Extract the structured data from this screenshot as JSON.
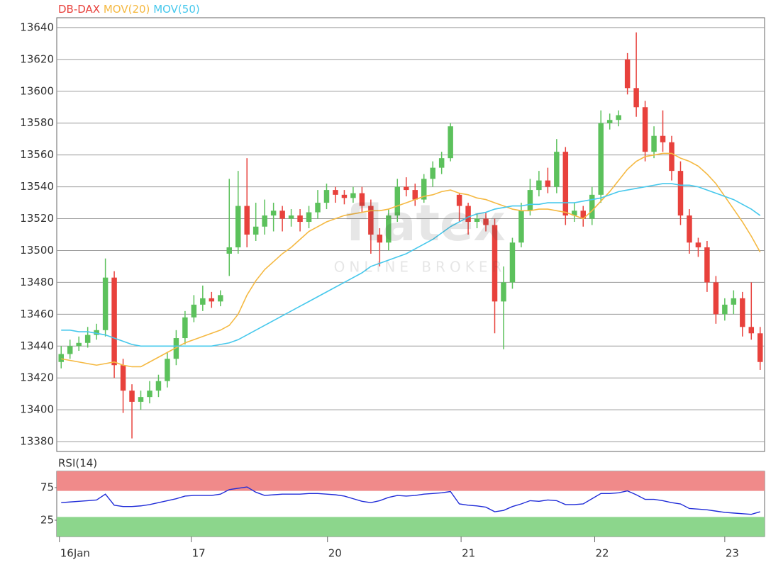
{
  "chart_data": [
    {
      "type": "candlestick",
      "watermark": {
        "logo": "flatex",
        "tagline": "ONLINE BROKER"
      },
      "xlim": [
        -0.5,
        79.5
      ],
      "ylim": [
        13373.8,
        13646.2
      ],
      "yticks": [
        13380,
        13400,
        13420,
        13440,
        13460,
        13480,
        13500,
        13520,
        13540,
        13560,
        13580,
        13600,
        13620,
        13640
      ],
      "grid": true,
      "series": [
        {
          "name": "DB-DAX",
          "color": "#e8413c",
          "up_color": "#5cc15c",
          "down_color": "#e8413c",
          "open": [
            13430,
            13435,
            13440,
            13442,
            13447,
            13450,
            13483,
            13428,
            13412,
            13405,
            13408,
            13412,
            13418,
            13432,
            13445,
            13458,
            13466,
            13470,
            13468,
            13498,
            13502,
            13528,
            13510,
            13515,
            13522,
            13525,
            13520,
            13522,
            13518,
            13524,
            13530,
            13538,
            13535,
            13533,
            13536,
            13528,
            13510,
            13505,
            13522,
            13540,
            13538,
            13532,
            13545,
            13552,
            13558,
            13535,
            13528,
            13518,
            13520,
            13516,
            13468,
            13480,
            13505,
            13525,
            13538,
            13544,
            13540,
            13562,
            13522,
            13525,
            13520,
            13535,
            13580,
            13582,
            13620,
            13602,
            13590,
            13562,
            13572,
            13568,
            13550,
            13522,
            13505,
            13502,
            13480,
            13460,
            13466,
            13470,
            13452,
            13448
          ],
          "high": [
            13440,
            13444,
            13446,
            13452,
            13454,
            13495,
            13487,
            13432,
            13416,
            13412,
            13418,
            13422,
            13436,
            13450,
            13462,
            13472,
            13478,
            13474,
            13475,
            13545,
            13550,
            13558,
            13530,
            13532,
            13530,
            13528,
            13526,
            13526,
            13528,
            13538,
            13542,
            13540,
            13538,
            13540,
            13540,
            13532,
            13514,
            13526,
            13545,
            13546,
            13542,
            13548,
            13556,
            13562,
            13580,
            13536,
            13530,
            13523,
            13524,
            13520,
            13490,
            13508,
            13530,
            13545,
            13550,
            13552,
            13570,
            13565,
            13530,
            13528,
            13540,
            13588,
            13586,
            13588,
            13624,
            13637,
            13594,
            13578,
            13588,
            13572,
            13556,
            13526,
            13508,
            13506,
            13484,
            13470,
            13475,
            13474,
            13480,
            13452
          ],
          "low": [
            13426,
            13432,
            13437,
            13439,
            13444,
            13446,
            13420,
            13398,
            13382,
            13400,
            13404,
            13408,
            13414,
            13428,
            13441,
            13455,
            13462,
            13464,
            13465,
            13484,
            13498,
            13502,
            13506,
            13510,
            13512,
            13512,
            13515,
            13512,
            13514,
            13520,
            13526,
            13530,
            13529,
            13530,
            13524,
            13498,
            13490,
            13500,
            13518,
            13534,
            13528,
            13530,
            13540,
            13548,
            13556,
            13518,
            13510,
            13514,
            13512,
            13448,
            13438,
            13476,
            13502,
            13522,
            13534,
            13536,
            13536,
            13516,
            13518,
            13515,
            13516,
            13530,
            13576,
            13578,
            13598,
            13584,
            13556,
            13558,
            13562,
            13544,
            13516,
            13498,
            13496,
            13474,
            13454,
            13456,
            13460,
            13446,
            13444,
            13425
          ],
          "close": [
            13435,
            13440,
            13442,
            13447,
            13450,
            13483,
            13428,
            13412,
            13405,
            13408,
            13412,
            13418,
            13432,
            13445,
            13458,
            13466,
            13470,
            13468,
            13472,
            13502,
            13528,
            13510,
            13515,
            13522,
            13525,
            13520,
            13522,
            13518,
            13524,
            13530,
            13538,
            13535,
            13533,
            13536,
            13528,
            13510,
            13505,
            13522,
            13540,
            13538,
            13532,
            13545,
            13552,
            13558,
            13578,
            13528,
            13518,
            13520,
            13516,
            13468,
            13480,
            13505,
            13525,
            13538,
            13544,
            13540,
            13562,
            13522,
            13525,
            13520,
            13535,
            13580,
            13582,
            13585,
            13602,
            13590,
            13562,
            13572,
            13568,
            13550,
            13522,
            13505,
            13502,
            13480,
            13460,
            13466,
            13470,
            13452,
            13448,
            13430
          ]
        },
        {
          "name": "MOV(20)",
          "color": "#f5b942",
          "values": [
            13432,
            13431,
            13430,
            13429,
            13428,
            13429,
            13430,
            13428,
            13427,
            13427,
            13430,
            13433,
            13436,
            13439,
            13442,
            13444,
            13446,
            13448,
            13450,
            13453,
            13460,
            13472,
            13481,
            13488,
            13493,
            13498,
            13502,
            13507,
            13512,
            13515,
            13518,
            13520,
            13522,
            13523,
            13524,
            13525,
            13525,
            13526,
            13528,
            13530,
            13532,
            13534,
            13535,
            13537,
            13538,
            13536,
            13535,
            13533,
            13532,
            13530,
            13528,
            13526,
            13525,
            13525,
            13526,
            13526,
            13525,
            13524,
            13522,
            13520,
            13525,
            13531,
            13537,
            13544,
            13551,
            13556,
            13559,
            13560,
            13561,
            13561,
            13558,
            13556,
            13553,
            13548,
            13542,
            13534,
            13526,
            13518,
            13509,
            13499
          ]
        },
        {
          "name": "MOV(50)",
          "color": "#46c8ec",
          "values": [
            13450,
            13450,
            13449,
            13449,
            13448,
            13447,
            13445,
            13443,
            13441,
            13440,
            13440,
            13440,
            13440,
            13440,
            13440,
            13440,
            13440,
            13440,
            13441,
            13442,
            13444,
            13447,
            13450,
            13453,
            13456,
            13459,
            13462,
            13465,
            13468,
            13471,
            13474,
            13477,
            13480,
            13483,
            13486,
            13490,
            13492,
            13494,
            13496,
            13498,
            13501,
            13504,
            13507,
            13511,
            13515,
            13518,
            13521,
            13523,
            13524,
            13526,
            13527,
            13528,
            13528,
            13529,
            13529,
            13530,
            13530,
            13530,
            13530,
            13531,
            13532,
            13533,
            13535,
            13537,
            13538,
            13539,
            13540,
            13541,
            13542,
            13542,
            13541,
            13541,
            13540,
            13538,
            13536,
            13534,
            13532,
            13529,
            13526,
            13522
          ]
        }
      ]
    },
    {
      "type": "line",
      "xlim": [
        -0.5,
        79.5
      ],
      "ylim": [
        0,
        100
      ],
      "yticks": [
        25,
        75
      ],
      "xticks": [
        {
          "value": -0.2,
          "label": "16Jan"
        },
        {
          "value": 14.7,
          "label": "17"
        },
        {
          "value": 30.1,
          "label": "20"
        },
        {
          "value": 45.2,
          "label": "21"
        },
        {
          "value": 60.3,
          "label": "22"
        },
        {
          "value": 75.0,
          "label": "23"
        }
      ],
      "bands": [
        {
          "range": [
            70,
            100
          ],
          "color": "#f08a8a"
        },
        {
          "range": [
            0,
            30
          ],
          "color": "#8cd68c"
        }
      ],
      "series": [
        {
          "name": "RSI(14)",
          "color": "#1f2bd8",
          "values": [
            52,
            53,
            54,
            55,
            56,
            65,
            48,
            46,
            46,
            47,
            49,
            52,
            55,
            58,
            62,
            63,
            63,
            63,
            65,
            72,
            74,
            76,
            68,
            63,
            64,
            65,
            65,
            65,
            66,
            66,
            65,
            64,
            62,
            58,
            54,
            52,
            55,
            60,
            63,
            62,
            63,
            65,
            66,
            67,
            69,
            50,
            48,
            47,
            45,
            38,
            40,
            46,
            50,
            55,
            54,
            56,
            55,
            49,
            49,
            50,
            58,
            66,
            66,
            67,
            70,
            64,
            57,
            57,
            55,
            52,
            50,
            43,
            42,
            41,
            39,
            37,
            36,
            35,
            34,
            38
          ]
        }
      ]
    }
  ]
}
